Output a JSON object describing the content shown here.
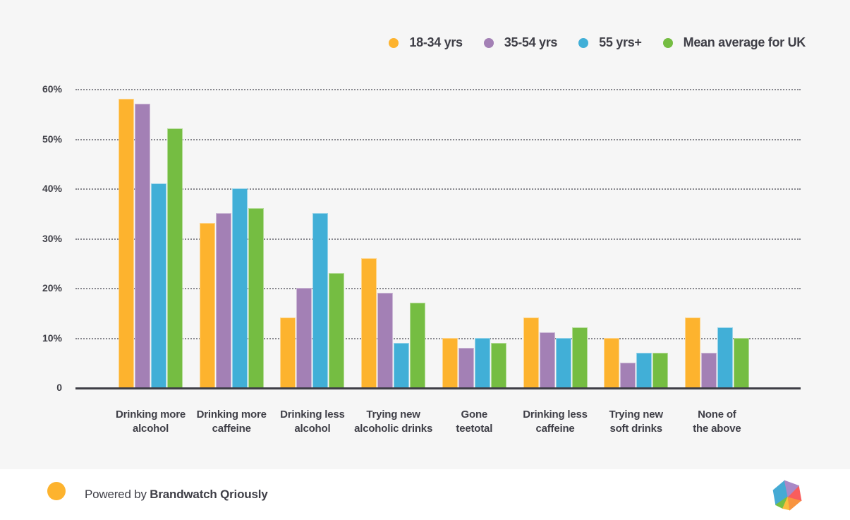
{
  "chart_data": {
    "type": "bar",
    "title": "",
    "xlabel": "",
    "ylabel": "",
    "ylim": [
      0,
      60
    ],
    "grid": "dotted horizontal",
    "legend_position": "top-right",
    "yticks": {
      "values": [
        0,
        10,
        20,
        30,
        40,
        50,
        60
      ],
      "labels": [
        "0",
        "10%",
        "20%",
        "30%",
        "40%",
        "50%",
        "60%"
      ]
    },
    "categories": [
      "Drinking more\nalcohol",
      "Drinking more\ncaffeine",
      "Drinking less\nalcohol",
      "Trying new\nalcoholic drinks",
      "Gone\nteetotal",
      "Drinking less\ncaffeine",
      "Trying new\nsoft drinks",
      "None of\nthe above"
    ],
    "series": [
      {
        "name": "18-34 yrs",
        "color": "#FDB32E",
        "values": [
          58,
          33,
          14,
          26,
          10,
          14,
          10,
          14
        ]
      },
      {
        "name": "35-54 yrs",
        "color": "#A380B5",
        "values": [
          57,
          35,
          20,
          19,
          8,
          11,
          5,
          7
        ]
      },
      {
        "name": "55 yrs+",
        "color": "#41AFD7",
        "values": [
          41,
          40,
          35,
          9,
          10,
          10,
          7,
          12
        ]
      },
      {
        "name": "Mean average for UK",
        "color": "#75BD42",
        "values": [
          52,
          36,
          23,
          17,
          9,
          12,
          7,
          10
        ]
      }
    ]
  },
  "footer": {
    "powered_by_prefix": "Powered by ",
    "powered_by_brand": "Brandwatch Qriously",
    "dot_color": "#FDB32E"
  },
  "style": {
    "background": "#F6F6F6",
    "axis_color": "#3E3E46",
    "grid_color": "#63636B",
    "text_color": "#3F3F47",
    "logo_facets": {
      "blue": "#45AAD4",
      "purple": "#A989C7",
      "red": "#F95D5D",
      "orange": "#F89440",
      "yellow": "#FBBC3D",
      "green": "#76BE43"
    }
  }
}
